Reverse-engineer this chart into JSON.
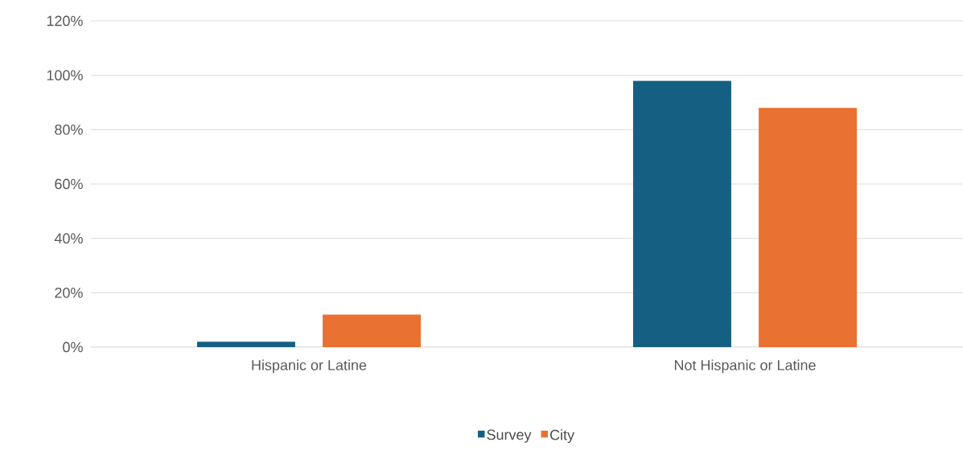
{
  "chart_data": {
    "type": "bar",
    "categories": [
      "Hispanic or Latine",
      "Not Hispanic or Latine"
    ],
    "series": [
      {
        "name": "Survey",
        "color": "#156082",
        "values": [
          2,
          98
        ]
      },
      {
        "name": "City",
        "color": "#e97132",
        "values": [
          12,
          88
        ]
      }
    ],
    "ylim": [
      0,
      120
    ],
    "yticks": [
      {
        "value": 0,
        "label": "0%"
      },
      {
        "value": 20,
        "label": "20%"
      },
      {
        "value": 40,
        "label": "40%"
      },
      {
        "value": 60,
        "label": "60%"
      },
      {
        "value": 80,
        "label": "80%"
      },
      {
        "value": 100,
        "label": "100%"
      },
      {
        "value": 120,
        "label": "120%"
      }
    ],
    "grid": "y",
    "legend": "bottom"
  }
}
